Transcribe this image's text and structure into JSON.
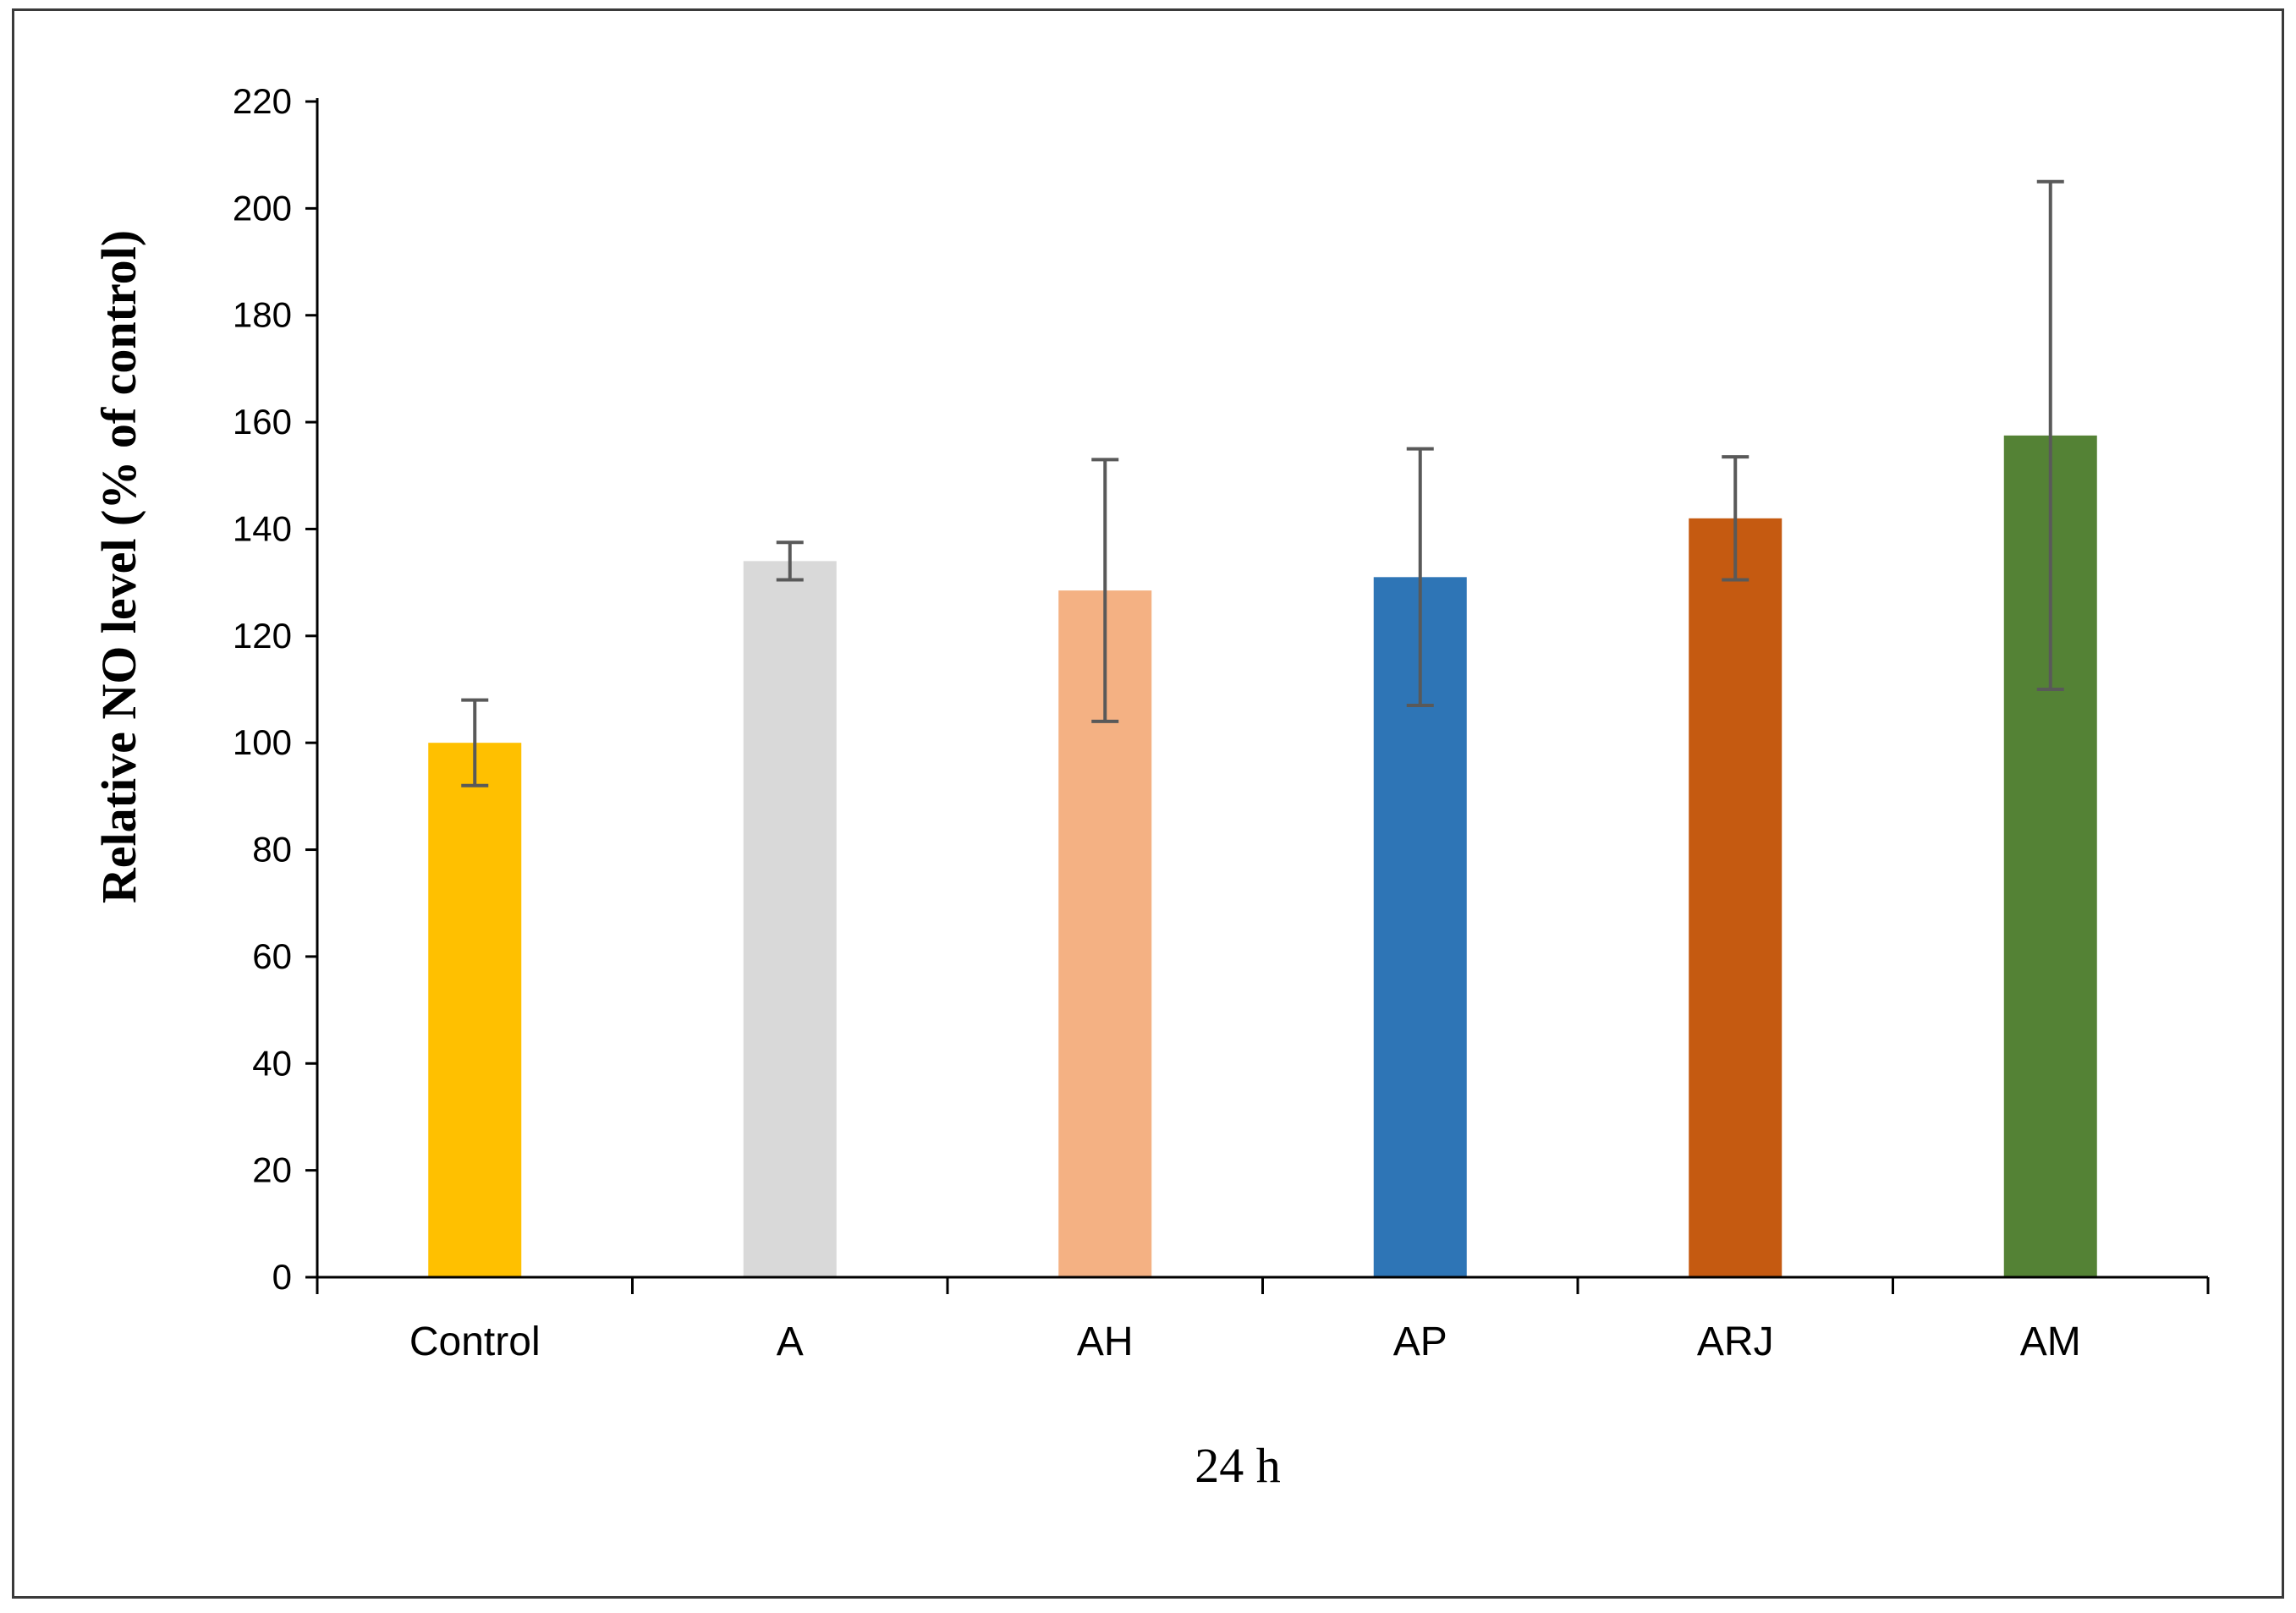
{
  "chart_data": {
    "type": "bar",
    "categories": [
      "Control",
      "A",
      "AH",
      "AP",
      "ARJ",
      "AM"
    ],
    "values": [
      100,
      134,
      128.5,
      131,
      142,
      157.5
    ],
    "errors": [
      8,
      3.5,
      24.5,
      24,
      11.5,
      47.5
    ],
    "colors": [
      "#FFC000",
      "#D9D9D9",
      "#F4B183",
      "#2E75B6",
      "#C55A11",
      "#548235"
    ],
    "title": "",
    "xlabel": "24 h",
    "ylabel": "Relative NO level (% of control)",
    "ylim": [
      0,
      220
    ],
    "yticks": [
      0,
      20,
      40,
      60,
      80,
      100,
      120,
      140,
      160,
      180,
      200,
      220
    ],
    "grid": false,
    "legend": "none"
  }
}
